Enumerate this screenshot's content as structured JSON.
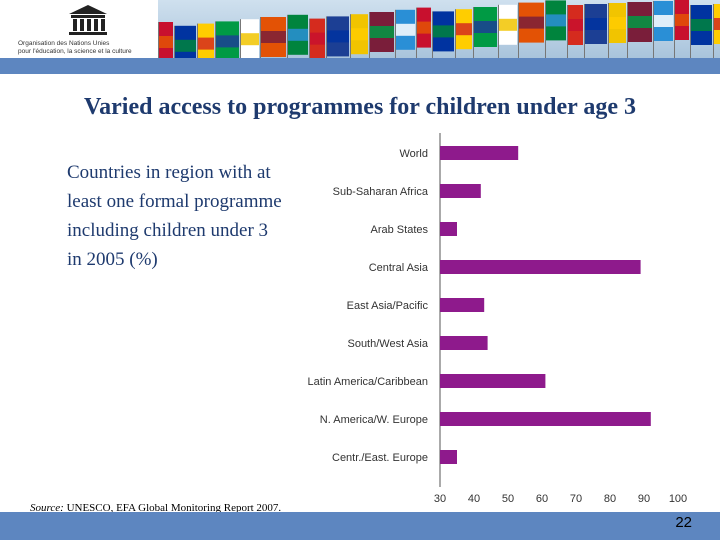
{
  "header": {
    "org_line1": "Organisation des Nations Unies",
    "org_line2": "pour l'éducation, la science et la culture"
  },
  "slide": {
    "title": "Varied access to programmes for children under age 3",
    "caption": "Countries in region with at least one formal programme including children under 3 in 2005 (%)",
    "source_label": "Source:",
    "source_text": " UNESCO, EFA Global Monitoring Report 2007.",
    "page_number": "22"
  },
  "colors": {
    "bar": "#8e1a8c",
    "accent": "#5d86c0",
    "title": "#1e3a6e"
  },
  "chart_data": {
    "type": "bar",
    "orientation": "horizontal",
    "categories": [
      "World",
      "Sub-Saharan Africa",
      "Arab States",
      "Central Asia",
      "East Asia/Pacific",
      "South/West Asia",
      "Latin America/Caribbean",
      "N. America/W. Europe",
      "Centr./East. Europe"
    ],
    "values": [
      53,
      42,
      35,
      89,
      43,
      44,
      61,
      92,
      35
    ],
    "xlim": [
      30,
      100
    ],
    "xticks": [
      30,
      40,
      50,
      60,
      70,
      80,
      90,
      100
    ],
    "grid": false
  }
}
